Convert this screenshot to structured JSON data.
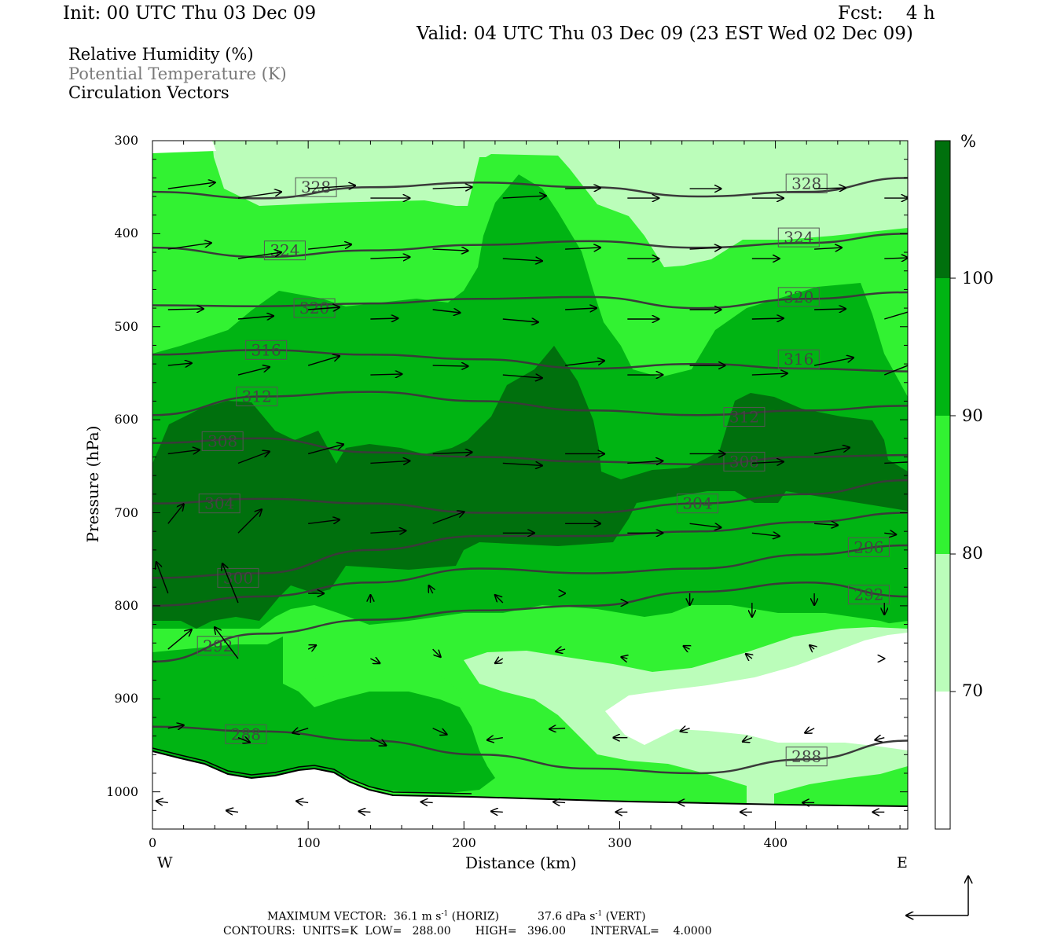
{
  "header": {
    "init": "Init: 00 UTC Thu 03 Dec 09",
    "fcst": "Fcst:    4 h",
    "valid": "Valid: 04 UTC Thu 03 Dec 09 (23 EST Wed 02 Dec 09)"
  },
  "legend": {
    "line1": "Relative Humidity (%)",
    "line2": "Potential Temperature (K)",
    "line3": "Circulation Vectors"
  },
  "axes": {
    "xlabel": "Distance (km)",
    "ylabel": "Pressure (hPa)",
    "x_left": "W",
    "x_right": "E",
    "xticks": [
      "0",
      "100",
      "200",
      "300",
      "400"
    ],
    "yticks": [
      "300",
      "400",
      "500",
      "600",
      "700",
      "800",
      "900",
      "1000"
    ]
  },
  "colorbar": {
    "unit": "%",
    "labels": [
      "100",
      "90",
      "80",
      "70"
    ],
    "colors": [
      "#00700d",
      "#00b413",
      "#32f232",
      "#bbfdba",
      "#ffffff"
    ]
  },
  "footer": {
    "maxvec_label": "MAXIMUM VECTOR:",
    "maxvec_horiz": "36.1 m s",
    "horiz_unit_sup": "-1",
    "horiz_tag": "(HORIZ)",
    "maxvec_vert": "37.6 dPa s",
    "vert_unit_sup": "-1",
    "vert_tag": "(VERT)",
    "contours": "CONTOURS:  UNITS=K  LOW=   288.00       HIGH=   396.00       INTERVAL=    4.0000"
  },
  "chart_data": {
    "type": "contour cross-section",
    "x_range_km": [
      0,
      485
    ],
    "y_range_hPa": [
      300,
      1040
    ],
    "y_reversed": true,
    "rh_levels": [
      70,
      80,
      90,
      100
    ],
    "theta_contours": [
      {
        "label": "328",
        "p": [
          355,
          362,
          350,
          345,
          350,
          360,
          355,
          340
        ]
      },
      {
        "label": "324",
        "p": [
          415,
          425,
          418,
          412,
          408,
          415,
          410,
          400
        ]
      },
      {
        "label": "320",
        "p": [
          477,
          478,
          475,
          470,
          468,
          480,
          470,
          463
        ]
      },
      {
        "label": "316",
        "p": [
          530,
          525,
          530,
          535,
          545,
          540,
          545,
          548
        ]
      },
      {
        "label": "312",
        "p": [
          595,
          575,
          570,
          580,
          590,
          595,
          590,
          585
        ]
      },
      {
        "label": "308",
        "p": [
          625,
          620,
          635,
          640,
          645,
          648,
          640,
          638
        ]
      },
      {
        "label": "304",
        "p": [
          690,
          685,
          690,
          700,
          700,
          690,
          680,
          665
        ]
      },
      {
        "label": "300",
        "p": [
          770,
          765,
          740,
          725,
          725,
          720,
          710,
          700
        ]
      },
      {
        "label": "296",
        "p": [
          800,
          790,
          775,
          760,
          765,
          760,
          745,
          735
        ]
      },
      {
        "label": "292",
        "p": [
          860,
          830,
          815,
          805,
          800,
          785,
          775,
          790
        ]
      },
      {
        "label": "288",
        "p": [
          930,
          935,
          945,
          960,
          975,
          980,
          965,
          945
        ]
      }
    ],
    "theta_x_km": [
      0,
      70,
      140,
      210,
      280,
      350,
      420,
      485
    ],
    "label_positions_km": {
      "328": [
        105,
        420
      ],
      "324": [
        85,
        415
      ],
      "320": [
        104,
        415
      ],
      "316": [
        73,
        415
      ],
      "312": [
        67,
        380
      ],
      "308": [
        45,
        380
      ],
      "304": [
        43,
        350
      ],
      "300": [
        55,
        0
      ],
      "296": [
        0,
        460
      ],
      "292": [
        42,
        460
      ],
      "288": [
        60,
        420
      ]
    },
    "label_pressures_hPa": {
      "328": [
        350,
        346
      ],
      "324": [
        418,
        404
      ],
      "320": [
        480,
        468
      ],
      "316": [
        525,
        535
      ],
      "312": [
        575,
        597
      ],
      "308": [
        623,
        645
      ],
      "304": [
        690,
        690
      ],
      "300": [
        770,
        0
      ],
      "296": [
        0,
        737
      ],
      "292": [
        843,
        788
      ],
      "288": [
        938,
        962
      ]
    },
    "max_vector_horiz_m_s": 36.1,
    "max_vector_vert_dPa_s": 37.6
  }
}
